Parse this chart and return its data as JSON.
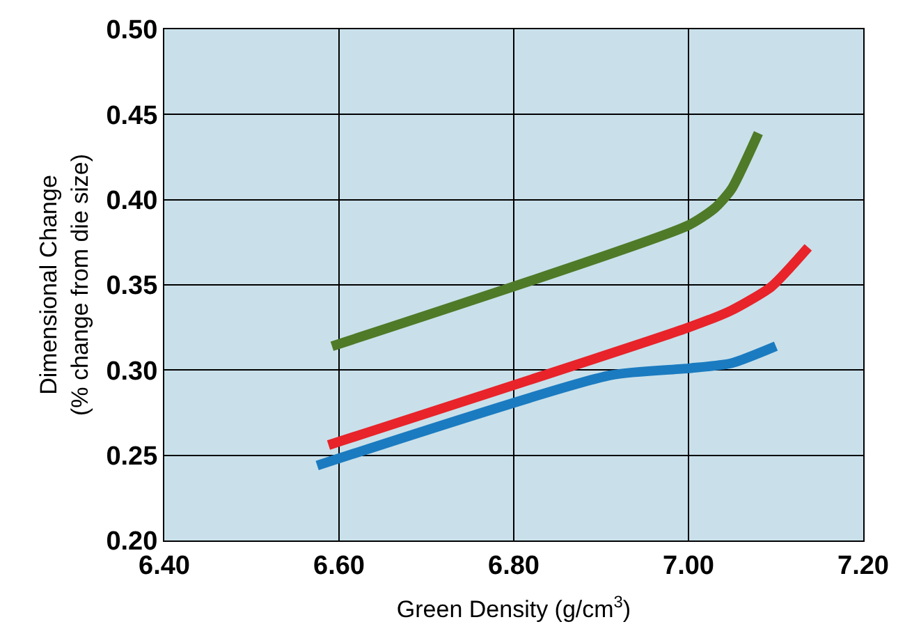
{
  "chart_data": {
    "type": "line",
    "xlabel": "Green Density (g/cm$^{3}$)",
    "ylabel": "Dimensional Change\n(% change from die size)",
    "xlim": [
      6.4,
      7.2
    ],
    "xticks": [
      {
        "value": 6.4,
        "label": "6.40"
      },
      {
        "value": 6.6,
        "label": "6.60"
      },
      {
        "value": 6.8,
        "label": "6.80"
      },
      {
        "value": 7.0,
        "label": "7.00"
      },
      {
        "value": 7.2,
        "label": "7.20"
      }
    ],
    "ylim": [
      0.2,
      0.5
    ],
    "yticks": [
      {
        "value": 0.2,
        "label": "0.20"
      },
      {
        "value": 0.25,
        "label": "0.25"
      },
      {
        "value": 0.3,
        "label": "0.30"
      },
      {
        "value": 0.35,
        "label": "0.35"
      },
      {
        "value": 0.4,
        "label": "0.40"
      },
      {
        "value": 0.45,
        "label": "0.45"
      },
      {
        "value": 0.5,
        "label": "0.50"
      }
    ],
    "grid": true,
    "legend": false,
    "marker": "none",
    "line_style": "solid",
    "series": [
      {
        "color": "#4f7a28",
        "x": [
          6.592,
          7.0,
          7.03,
          7.049,
          7.08
        ],
        "values": [
          0.314,
          0.385,
          0.395,
          0.406,
          0.439
        ]
      },
      {
        "color": "#e8232a",
        "x": [
          6.588,
          7.0,
          7.049,
          7.095,
          7.137
        ],
        "values": [
          0.256,
          0.325,
          0.335,
          0.349,
          0.372
        ]
      },
      {
        "color": "#1b7bc0",
        "x": [
          6.575,
          6.911,
          7.0,
          7.049,
          7.1
        ],
        "values": [
          0.244,
          0.297,
          0.301,
          0.304,
          0.314
        ]
      }
    ]
  }
}
